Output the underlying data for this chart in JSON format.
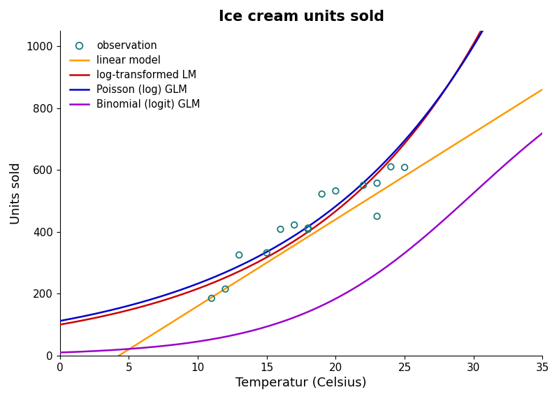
{
  "title": "Ice cream units sold",
  "xlabel": "Temperatur (Celsius)",
  "ylabel": "Units sold",
  "xlim": [
    0,
    35
  ],
  "ylim": [
    0,
    1050
  ],
  "xticks": [
    0,
    5,
    10,
    15,
    20,
    25,
    30,
    35
  ],
  "yticks": [
    0,
    200,
    400,
    600,
    800,
    1000
  ],
  "obs_x": [
    11,
    12,
    13,
    15,
    16,
    17,
    18,
    18,
    19,
    20,
    22,
    23,
    23,
    24,
    25
  ],
  "obs_y": [
    185,
    215,
    325,
    332,
    408,
    422,
    412,
    408,
    522,
    532,
    550,
    557,
    450,
    610,
    608
  ],
  "obs_color": "#1a7a7a",
  "linear_color": "#ff9900",
  "log_lm_color": "#cc0000",
  "poisson_color": "#0000cc",
  "binomial_color": "#9900cc",
  "line_width": 1.8,
  "legend_labels": [
    "observation",
    "linear model",
    "log-transformed LM",
    "Poisson (log) GLM",
    "Binomial (logit) GLM"
  ],
  "background_color": "#ffffff",
  "title_fontsize": 15,
  "axis_fontsize": 13,
  "tick_fontsize": 11,
  "linear_intercept": -120,
  "linear_slope": 28,
  "log_lm_a0": 100,
  "log_lm_b": 0.077,
  "poisson_a0": 112,
  "poisson_b": 0.073,
  "binomial_ymax": 1050,
  "binomial_x0": 30,
  "binomial_k": 0.155
}
